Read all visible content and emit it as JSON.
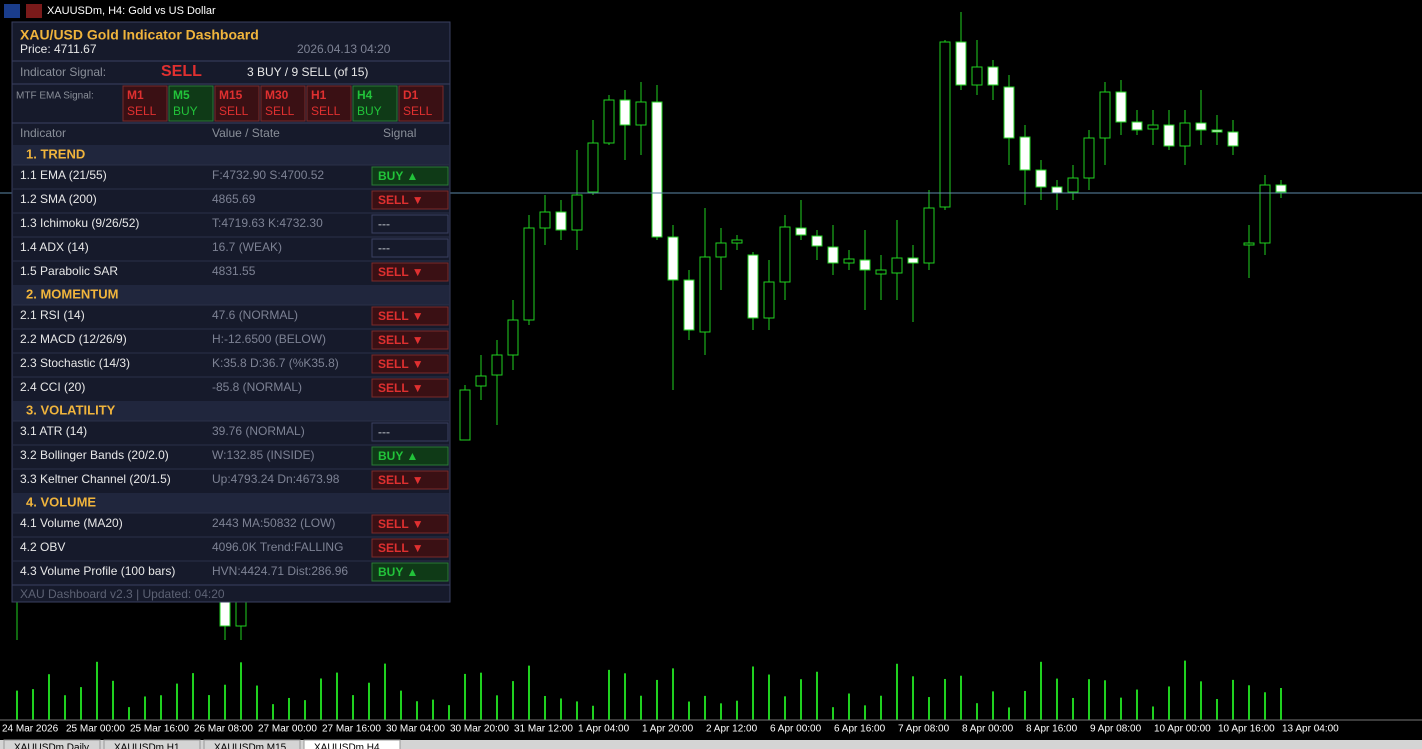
{
  "window_title": "XAUUSDm, H4:  Gold vs US Dollar",
  "panel": {
    "title": "XAU/USD  Gold Indicator Dashboard",
    "price": "Price: 4711.67",
    "datetime": "2026.04.13 04:20",
    "signal_label": "Indicator Signal:",
    "signal": "SELL",
    "summary": "3 BUY / 9 SELL  (of 15)",
    "mtf_label": "MTF EMA Signal:",
    "buy_color": "#22c33a",
    "sell_color": "#e03030",
    "neutral_color": "#8a8f99",
    "mtf": [
      {
        "tf": "M1",
        "signal": "SELL",
        "side": "sell"
      },
      {
        "tf": "M5",
        "signal": "BUY",
        "side": "buy"
      },
      {
        "tf": "M15",
        "signal": "SELL",
        "side": "sell"
      },
      {
        "tf": "M30",
        "signal": "SELL",
        "side": "sell"
      },
      {
        "tf": "H1",
        "signal": "SELL",
        "side": "sell"
      },
      {
        "tf": "H4",
        "signal": "BUY",
        "side": "buy"
      },
      {
        "tf": "D1",
        "signal": "SELL",
        "side": "sell"
      }
    ],
    "headers": [
      "Indicator",
      "Value / State",
      "Signal"
    ],
    "sections": [
      {
        "name": "1. TREND",
        "rows": [
          {
            "name": "1.1  EMA (21/55)",
            "value": "F:4732.90  S:4700.52",
            "signal": "BUY ▲",
            "side": "buy"
          },
          {
            "name": "1.2  SMA (200)",
            "value": "4865.69",
            "signal": "SELL ▼",
            "side": "sell"
          },
          {
            "name": "1.3  Ichimoku (9/26/52)",
            "value": "T:4719.63  K:4732.30",
            "signal": "---",
            "side": "neutral"
          },
          {
            "name": "1.4  ADX (14)",
            "value": "16.7 (WEAK)",
            "signal": "---",
            "side": "neutral"
          },
          {
            "name": "1.5  Parabolic SAR",
            "value": "4831.55",
            "signal": "SELL ▼",
            "side": "sell"
          }
        ]
      },
      {
        "name": "2. MOMENTUM",
        "rows": [
          {
            "name": "2.1  RSI (14)",
            "value": "47.6 (NORMAL)",
            "signal": "SELL ▼",
            "side": "sell"
          },
          {
            "name": "2.2  MACD (12/26/9)",
            "value": "H:-12.6500 (BELOW)",
            "signal": "SELL ▼",
            "side": "sell"
          },
          {
            "name": "2.3  Stochastic (14/3)",
            "value": "K:35.8  D:36.7 (%K35.8)",
            "signal": "SELL ▼",
            "side": "sell"
          },
          {
            "name": "2.4  CCI (20)",
            "value": "-85.8 (NORMAL)",
            "signal": "SELL ▼",
            "side": "sell"
          }
        ]
      },
      {
        "name": "3. VOLATILITY",
        "rows": [
          {
            "name": "3.1  ATR (14)",
            "value": "39.76 (NORMAL)",
            "signal": "---",
            "side": "neutral"
          },
          {
            "name": "3.2  Bollinger Bands (20/2.0)",
            "value": "W:132.85 (INSIDE)",
            "signal": "BUY ▲",
            "side": "buy"
          },
          {
            "name": "3.3  Keltner Channel (20/1.5)",
            "value": "Up:4793.24  Dn:4673.98",
            "signal": "SELL ▼",
            "side": "sell"
          }
        ]
      },
      {
        "name": "4. VOLUME",
        "rows": [
          {
            "name": "4.1  Volume (MA20)",
            "value": "2443  MA:50832 (LOW)",
            "signal": "SELL ▼",
            "side": "sell"
          },
          {
            "name": "4.2  OBV",
            "value": "4096.0K  Trend:FALLING",
            "signal": "SELL ▼",
            "side": "sell"
          },
          {
            "name": "4.3  Volume Profile (100 bars)",
            "value": "HVN:4424.71  Dist:286.96",
            "signal": "BUY ▲",
            "side": "buy"
          }
        ]
      }
    ],
    "footer": "XAU Dashboard v2.3  |  Updated: 04:20"
  },
  "time_axis": [
    "24 Mar 2026",
    "25 Mar 00:00",
    "25 Mar 16:00",
    "26 Mar 08:00",
    "27 Mar 00:00",
    "27 Mar 16:00",
    "30 Mar 04:00",
    "30 Mar 20:00",
    "31 Mar 12:00",
    "1 Apr 04:00",
    "1 Apr 20:00",
    "2 Apr 12:00",
    "6 Apr 00:00",
    "6 Apr 16:00",
    "7 Apr 08:00",
    "8 Apr 00:00",
    "8 Apr 16:00",
    "9 Apr 08:00",
    "10 Apr 00:00",
    "10 Apr 16:00",
    "13 Apr 04:00"
  ],
  "tabs": [
    "XAUUSDm,Daily",
    "XAUUSDm,H1",
    "XAUUSDm,M15",
    "XAUUSDm,H4"
  ]
}
